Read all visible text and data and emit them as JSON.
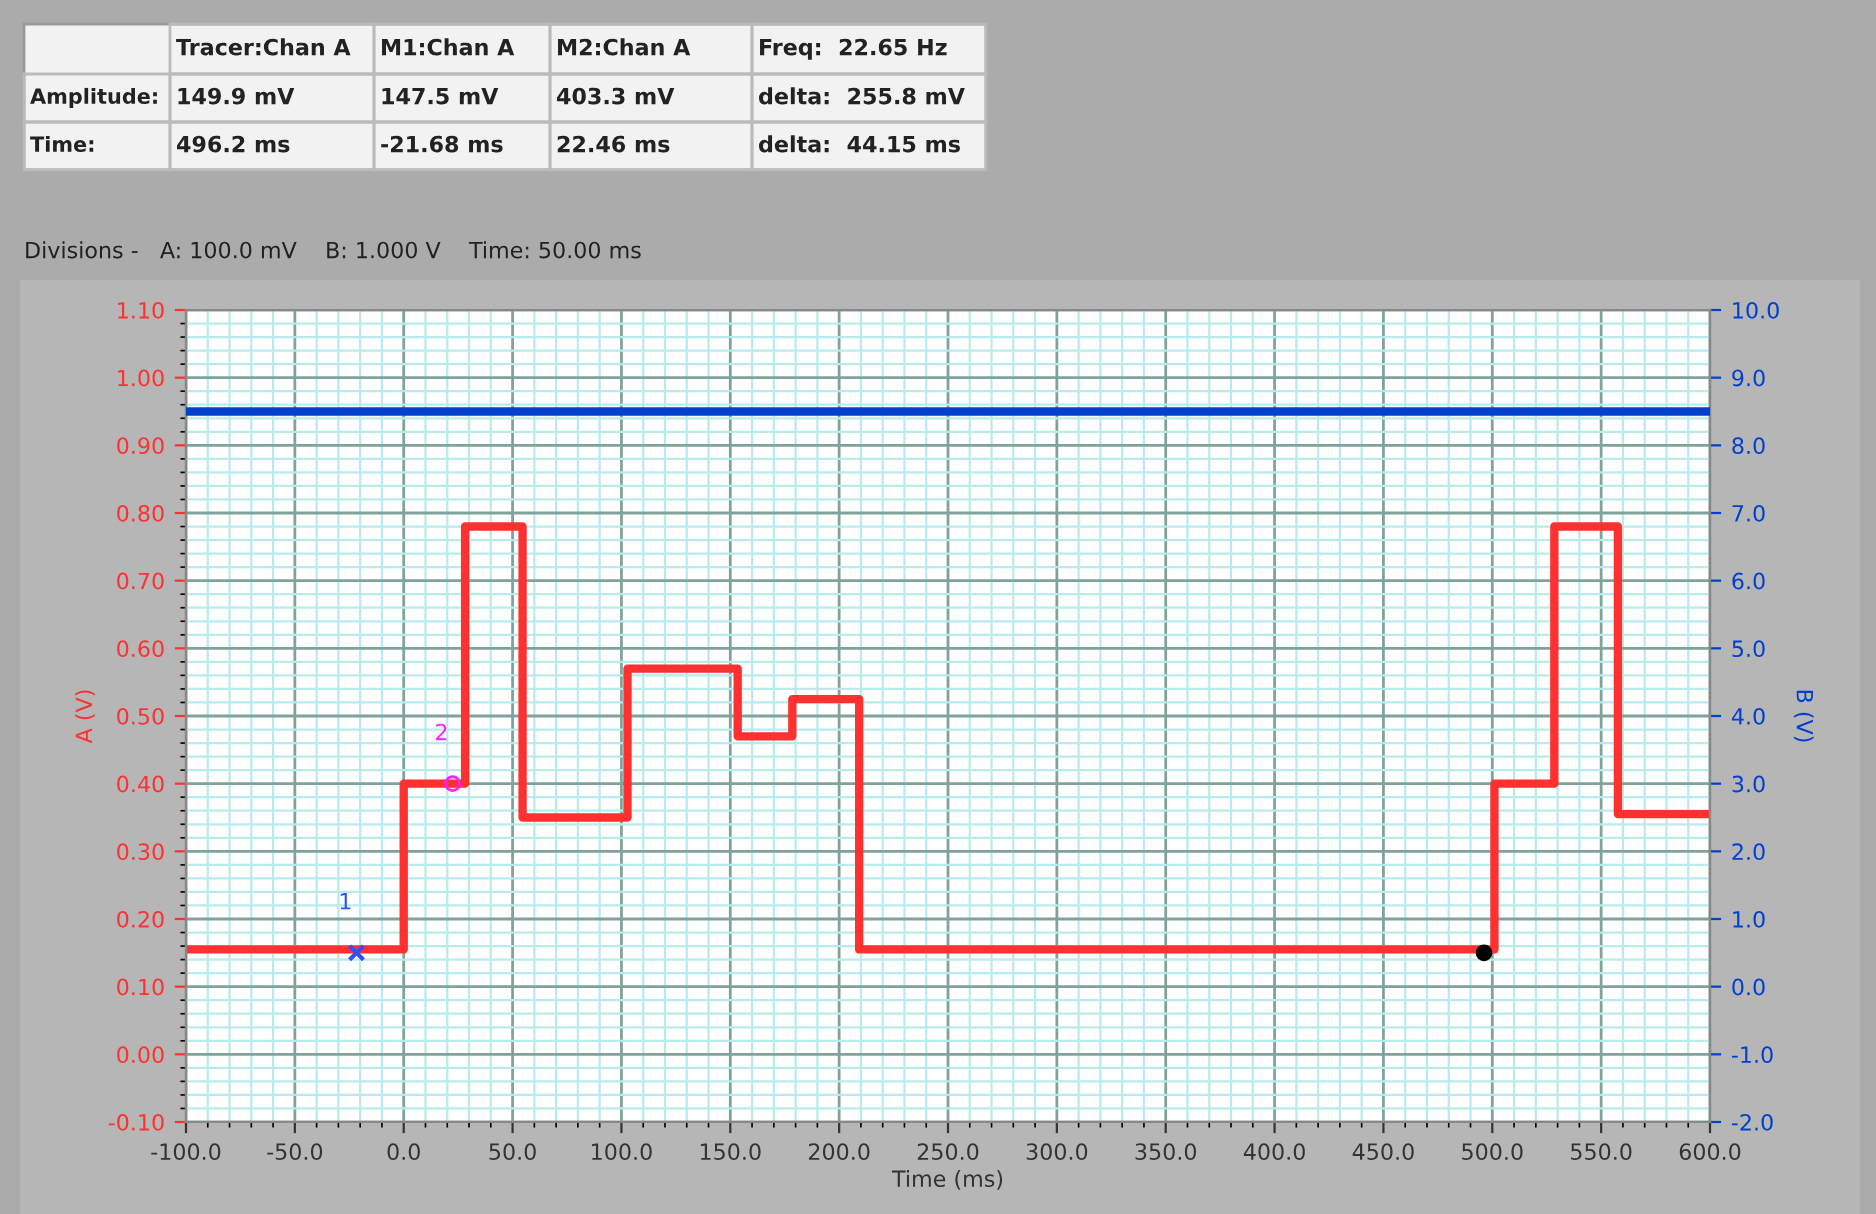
{
  "chart_data": {
    "type": "step",
    "subtitle": "Divisions -   A: 100.0 mV    B: 1.000 V    Time: 50.00 ms",
    "xlabel": "Time (ms)",
    "ylabel": "A (V)",
    "y2label": "B (V)",
    "annotations": [
      "Tracer:Chan A",
      "M1:Chan A",
      "M2:Chan A",
      "Freq:  22.65 Hz",
      "Amplitude:",
      "149.9 mV",
      "147.5 mV",
      "403.3 mV",
      "delta:  255.8 mV",
      "Time:",
      "496.2 ms",
      "-21.68 ms",
      "22.46 ms",
      "delta:  44.15 ms",
      "1",
      "2"
    ],
    "series": [
      {
        "color": "#ff3030",
        "x": [
          -100,
          0,
          28.2,
          54.6,
          102.8,
          153.4,
          178.5,
          209.2,
          501,
          528.5,
          557.7,
          600
        ],
        "values": [
          0.155,
          0.4,
          0.78,
          0.35,
          0.57,
          0.47,
          0.525,
          0.155,
          0.4,
          0.78,
          0.355,
          0.355
        ]
      },
      {
        "type": "line",
        "axis": "y2",
        "color": "#0040d0",
        "x": [
          -100,
          600
        ],
        "values": [
          8.5,
          8.5
        ]
      },
      {
        "type": "scatter",
        "marker": "cross",
        "color": "#3050ff",
        "x": [
          -21.68
        ],
        "values": [
          0.15
        ]
      },
      {
        "type": "scatter",
        "marker": "circle",
        "color": "#ff20ff",
        "x": [
          22.46
        ],
        "values": [
          0.4
        ]
      },
      {
        "type": "scatter",
        "marker": "circle",
        "color": "#000000",
        "x": [
          496.2
        ],
        "values": [
          0.15
        ]
      }
    ],
    "xlim": [
      -100,
      600
    ],
    "xticks": [
      {
        "value": -100,
        "label": "-100.0"
      },
      {
        "value": -50,
        "label": "-50.0"
      },
      {
        "value": 0,
        "label": "0.0"
      },
      {
        "value": 50,
        "label": "50.0"
      },
      {
        "value": 100,
        "label": "100.0"
      },
      {
        "value": 150,
        "label": "150.0"
      },
      {
        "value": 200,
        "label": "200.0"
      },
      {
        "value": 250,
        "label": "250.0"
      },
      {
        "value": 300,
        "label": "300.0"
      },
      {
        "value": 350,
        "label": "350.0"
      },
      {
        "value": 400,
        "label": "400.0"
      },
      {
        "value": 450,
        "label": "450.0"
      },
      {
        "value": 500,
        "label": "500.0"
      },
      {
        "value": 550,
        "label": "550.0"
      },
      {
        "value": 600,
        "label": "600.0"
      },
      {
        "value": -90,
        "label": null
      },
      {
        "value": -80,
        "label": null
      },
      {
        "value": -70,
        "label": null
      },
      {
        "value": -60,
        "label": null
      },
      {
        "value": -40,
        "label": null
      },
      {
        "value": -30,
        "label": null
      },
      {
        "value": -20,
        "label": null
      },
      {
        "value": -10,
        "label": null
      },
      {
        "value": 10,
        "label": null
      },
      {
        "value": 20,
        "label": null
      },
      {
        "value": 30,
        "label": null
      },
      {
        "value": 40,
        "label": null
      },
      {
        "value": 60,
        "label": null
      },
      {
        "value": 70,
        "label": null
      },
      {
        "value": 80,
        "label": null
      },
      {
        "value": 90,
        "label": null
      },
      {
        "value": 110,
        "label": null
      },
      {
        "value": 120,
        "label": null
      },
      {
        "value": 130,
        "label": null
      },
      {
        "value": 140,
        "label": null
      },
      {
        "value": 160,
        "label": null
      },
      {
        "value": 170,
        "label": null
      },
      {
        "value": 180,
        "label": null
      },
      {
        "value": 190,
        "label": null
      },
      {
        "value": 210,
        "label": null
      },
      {
        "value": 220,
        "label": null
      },
      {
        "value": 230,
        "label": null
      },
      {
        "value": 240,
        "label": null
      },
      {
        "value": 260,
        "label": null
      },
      {
        "value": 270,
        "label": null
      },
      {
        "value": 280,
        "label": null
      },
      {
        "value": 290,
        "label": null
      },
      {
        "value": 310,
        "label": null
      },
      {
        "value": 320,
        "label": null
      },
      {
        "value": 330,
        "label": null
      },
      {
        "value": 340,
        "label": null
      },
      {
        "value": 360,
        "label": null
      },
      {
        "value": 370,
        "label": null
      },
      {
        "value": 380,
        "label": null
      },
      {
        "value": 390,
        "label": null
      },
      {
        "value": 410,
        "label": null
      },
      {
        "value": 420,
        "label": null
      },
      {
        "value": 430,
        "label": null
      },
      {
        "value": 440,
        "label": null
      },
      {
        "value": 460,
        "label": null
      },
      {
        "value": 470,
        "label": null
      },
      {
        "value": 480,
        "label": null
      },
      {
        "value": 490,
        "label": null
      },
      {
        "value": 510,
        "label": null
      },
      {
        "value": 520,
        "label": null
      },
      {
        "value": 530,
        "label": null
      },
      {
        "value": 540,
        "label": null
      },
      {
        "value": 560,
        "label": null
      },
      {
        "value": 570,
        "label": null
      },
      {
        "value": 580,
        "label": null
      },
      {
        "value": 590,
        "label": null
      }
    ],
    "ylim": [
      -0.1,
      1.1
    ],
    "yticks": [
      {
        "value": -0.1,
        "label": "-0.10"
      },
      {
        "value": 0,
        "label": "0.00"
      },
      {
        "value": 0.1,
        "label": "0.10"
      },
      {
        "value": 0.2,
        "label": "0.20"
      },
      {
        "value": 0.3,
        "label": "0.30"
      },
      {
        "value": 0.4,
        "label": "0.40"
      },
      {
        "value": 0.5,
        "label": "0.50"
      },
      {
        "value": 0.6,
        "label": "0.60"
      },
      {
        "value": 0.7,
        "label": "0.70"
      },
      {
        "value": 0.8,
        "label": "0.80"
      },
      {
        "value": 0.9,
        "label": "0.90"
      },
      {
        "value": 1.0,
        "label": "1.00"
      },
      {
        "value": 1.1,
        "label": "1.10"
      },
      {
        "value": -0.08,
        "label": null
      },
      {
        "value": -0.06,
        "label": null
      },
      {
        "value": -0.04,
        "label": null
      },
      {
        "value": -0.02,
        "label": null
      },
      {
        "value": 0.02,
        "label": null
      },
      {
        "value": 0.04,
        "label": null
      },
      {
        "value": 0.06,
        "label": null
      },
      {
        "value": 0.08,
        "label": null
      },
      {
        "value": 0.12,
        "label": null
      },
      {
        "value": 0.14,
        "label": null
      },
      {
        "value": 0.16,
        "label": null
      },
      {
        "value": 0.18,
        "label": null
      },
      {
        "value": 0.22,
        "label": null
      },
      {
        "value": 0.24,
        "label": null
      },
      {
        "value": 0.26,
        "label": null
      },
      {
        "value": 0.28,
        "label": null
      },
      {
        "value": 0.32,
        "label": null
      },
      {
        "value": 0.34,
        "label": null
      },
      {
        "value": 0.36,
        "label": null
      },
      {
        "value": 0.38,
        "label": null
      },
      {
        "value": 0.42,
        "label": null
      },
      {
        "value": 0.44,
        "label": null
      },
      {
        "value": 0.46,
        "label": null
      },
      {
        "value": 0.48,
        "label": null
      },
      {
        "value": 0.52,
        "label": null
      },
      {
        "value": 0.54,
        "label": null
      },
      {
        "value": 0.56,
        "label": null
      },
      {
        "value": 0.58,
        "label": null
      },
      {
        "value": 0.62,
        "label": null
      },
      {
        "value": 0.64,
        "label": null
      },
      {
        "value": 0.66,
        "label": null
      },
      {
        "value": 0.68,
        "label": null
      },
      {
        "value": 0.72,
        "label": null
      },
      {
        "value": 0.74,
        "label": null
      },
      {
        "value": 0.76,
        "label": null
      },
      {
        "value": 0.78,
        "label": null
      },
      {
        "value": 0.82,
        "label": null
      },
      {
        "value": 0.84,
        "label": null
      },
      {
        "value": 0.86,
        "label": null
      },
      {
        "value": 0.88,
        "label": null
      },
      {
        "value": 0.92,
        "label": null
      },
      {
        "value": 0.94,
        "label": null
      },
      {
        "value": 0.96,
        "label": null
      },
      {
        "value": 0.98,
        "label": null
      },
      {
        "value": 1.02,
        "label": null
      },
      {
        "value": 1.04,
        "label": null
      },
      {
        "value": 1.06,
        "label": null
      },
      {
        "value": 1.08,
        "label": null
      }
    ],
    "y2lim": [
      -2,
      10
    ],
    "y2ticks": [
      {
        "value": -2,
        "label": "-2.0"
      },
      {
        "value": -1,
        "label": "-1.0"
      },
      {
        "value": 0,
        "label": "0.0"
      },
      {
        "value": 1,
        "label": "1.0"
      },
      {
        "value": 2,
        "label": "2.0"
      },
      {
        "value": 3,
        "label": "3.0"
      },
      {
        "value": 4,
        "label": "4.0"
      },
      {
        "value": 5,
        "label": "5.0"
      },
      {
        "value": 6,
        "label": "6.0"
      },
      {
        "value": 7,
        "label": "7.0"
      },
      {
        "value": 8,
        "label": "8.0"
      },
      {
        "value": 9,
        "label": "9.0"
      },
      {
        "value": 10,
        "label": "10.0"
      }
    ],
    "grid": true
  }
}
